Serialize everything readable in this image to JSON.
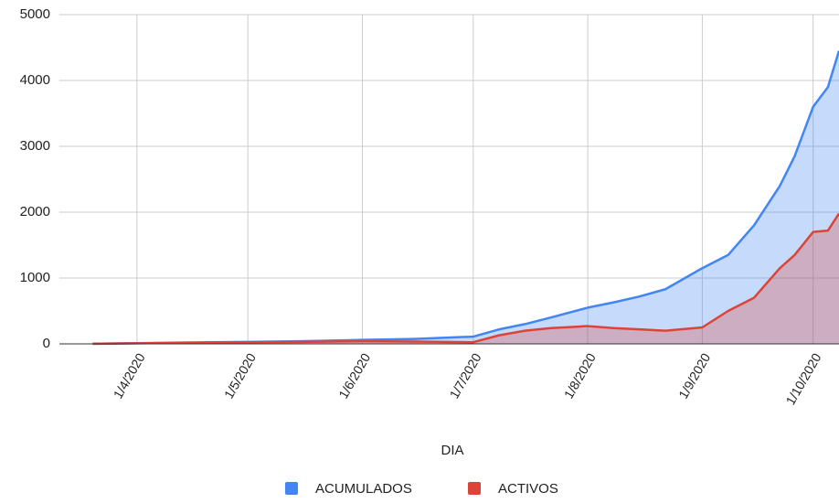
{
  "chart_data": {
    "type": "area",
    "x_label": "DIA",
    "x": [
      "2020-03-20",
      "2020-04-01",
      "2020-04-15",
      "2020-05-01",
      "2020-05-15",
      "2020-06-01",
      "2020-06-15",
      "2020-07-01",
      "2020-07-08",
      "2020-07-15",
      "2020-07-22",
      "2020-08-01",
      "2020-08-08",
      "2020-08-15",
      "2020-08-22",
      "2020-09-01",
      "2020-09-08",
      "2020-09-15",
      "2020-09-22",
      "2020-09-26",
      "2020-10-01",
      "2020-10-05",
      "2020-10-08"
    ],
    "series": [
      {
        "name": "ACUMULADOS",
        "color": "#4285f4",
        "values": [
          2,
          10,
          20,
          30,
          40,
          60,
          75,
          110,
          220,
          300,
          400,
          550,
          630,
          720,
          830,
          1150,
          1350,
          1800,
          2400,
          2850,
          3600,
          3900,
          4450
        ]
      },
      {
        "name": "ACTIVOS",
        "color": "#db4437",
        "values": [
          2,
          8,
          15,
          25,
          30,
          40,
          35,
          25,
          130,
          200,
          240,
          270,
          240,
          220,
          200,
          250,
          500,
          700,
          1150,
          1350,
          1700,
          1720,
          1980
        ]
      }
    ],
    "xlim": [
      "2020-03-11",
      "2020-10-08"
    ],
    "xticks": [
      {
        "value": "2020-04-01",
        "label": "1/4/2020"
      },
      {
        "value": "2020-05-01",
        "label": "1/5/2020"
      },
      {
        "value": "2020-06-01",
        "label": "1/6/2020"
      },
      {
        "value": "2020-07-01",
        "label": "1/7/2020"
      },
      {
        "value": "2020-08-01",
        "label": "1/8/2020"
      },
      {
        "value": "2020-09-01",
        "label": "1/9/2020"
      },
      {
        "value": "2020-10-01",
        "label": "1/10/2020"
      }
    ],
    "ylim": [
      0,
      5000
    ],
    "yticks": [
      0,
      1000,
      2000,
      3000,
      4000,
      5000
    ],
    "grid": true,
    "legend": "bottom"
  }
}
